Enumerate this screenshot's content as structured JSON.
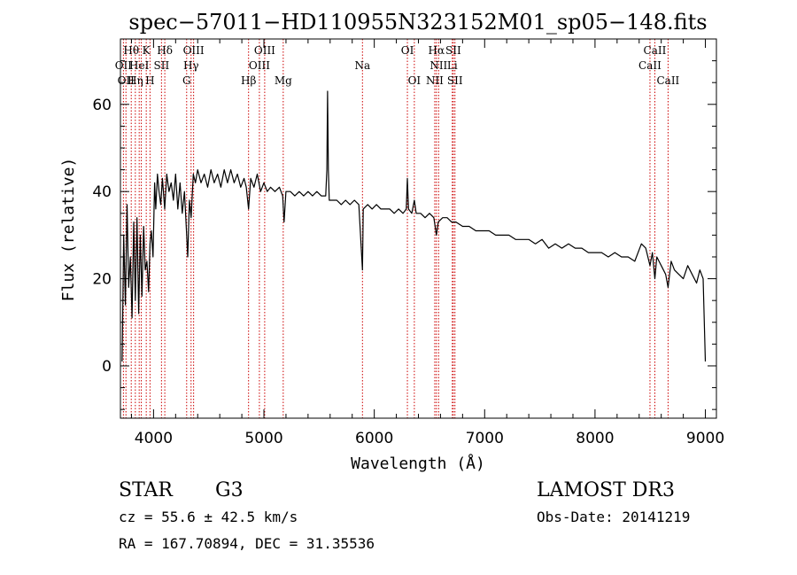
{
  "chart_data": {
    "type": "line",
    "title": "spec−57011−HD110955N323152M01_sp05−148.fits",
    "xlabel": "Wavelength (Å)",
    "ylabel": "Flux (relative)",
    "xlim": [
      3700,
      9100
    ],
    "ylim": [
      -12,
      75
    ],
    "x_ticks": [
      4000,
      5000,
      6000,
      7000,
      8000,
      9000
    ],
    "x_tick_labels": [
      "4000",
      "5000",
      "6000",
      "7000",
      "8000",
      "9000"
    ],
    "y_ticks": [
      0,
      20,
      40,
      60
    ],
    "y_tick_labels": [
      "0",
      "20",
      "40",
      "60"
    ],
    "line_color": "#000000",
    "marker_color": "#cc0000",
    "series": [
      {
        "name": "flux",
        "points": [
          [
            3715,
            1
          ],
          [
            3730,
            30
          ],
          [
            3745,
            14
          ],
          [
            3760,
            37
          ],
          [
            3775,
            18
          ],
          [
            3790,
            25
          ],
          [
            3805,
            11
          ],
          [
            3820,
            33
          ],
          [
            3835,
            15
          ],
          [
            3850,
            34
          ],
          [
            3865,
            12
          ],
          [
            3880,
            30
          ],
          [
            3895,
            16
          ],
          [
            3910,
            32
          ],
          [
            3925,
            22
          ],
          [
            3940,
            24
          ],
          [
            3955,
            17
          ],
          [
            3968,
            28
          ],
          [
            3980,
            31
          ],
          [
            3995,
            25
          ],
          [
            4010,
            42
          ],
          [
            4020,
            36
          ],
          [
            4035,
            44
          ],
          [
            4050,
            40
          ],
          [
            4065,
            37
          ],
          [
            4080,
            43
          ],
          [
            4101,
            36
          ],
          [
            4120,
            44
          ],
          [
            4140,
            40
          ],
          [
            4160,
            42
          ],
          [
            4180,
            38
          ],
          [
            4200,
            44
          ],
          [
            4220,
            36
          ],
          [
            4240,
            42
          ],
          [
            4260,
            35
          ],
          [
            4280,
            40
          ],
          [
            4300,
            30
          ],
          [
            4310,
            25
          ],
          [
            4325,
            38
          ],
          [
            4340,
            34
          ],
          [
            4360,
            44
          ],
          [
            4380,
            42
          ],
          [
            4400,
            45
          ],
          [
            4430,
            42
          ],
          [
            4460,
            44
          ],
          [
            4490,
            41
          ],
          [
            4520,
            45
          ],
          [
            4550,
            42
          ],
          [
            4580,
            44
          ],
          [
            4610,
            41
          ],
          [
            4640,
            45
          ],
          [
            4670,
            42
          ],
          [
            4700,
            45
          ],
          [
            4730,
            42
          ],
          [
            4760,
            44
          ],
          [
            4790,
            41
          ],
          [
            4820,
            43
          ],
          [
            4840,
            41
          ],
          [
            4861,
            36
          ],
          [
            4880,
            43
          ],
          [
            4910,
            41
          ],
          [
            4940,
            44
          ],
          [
            4970,
            40
          ],
          [
            5000,
            42
          ],
          [
            5030,
            40
          ],
          [
            5060,
            41
          ],
          [
            5100,
            40
          ],
          [
            5140,
            41
          ],
          [
            5170,
            39
          ],
          [
            5183,
            33
          ],
          [
            5200,
            40
          ],
          [
            5240,
            40
          ],
          [
            5280,
            39
          ],
          [
            5320,
            40
          ],
          [
            5360,
            39
          ],
          [
            5400,
            40
          ],
          [
            5440,
            39
          ],
          [
            5480,
            40
          ],
          [
            5520,
            39
          ],
          [
            5560,
            39
          ],
          [
            5570,
            45
          ],
          [
            5577,
            63
          ],
          [
            5584,
            45
          ],
          [
            5592,
            38
          ],
          [
            5620,
            38
          ],
          [
            5660,
            38
          ],
          [
            5700,
            37
          ],
          [
            5740,
            38
          ],
          [
            5780,
            37
          ],
          [
            5820,
            38
          ],
          [
            5860,
            37
          ],
          [
            5893,
            22
          ],
          [
            5900,
            36
          ],
          [
            5940,
            37
          ],
          [
            5980,
            36
          ],
          [
            6020,
            37
          ],
          [
            6060,
            36
          ],
          [
            6100,
            36
          ],
          [
            6140,
            36
          ],
          [
            6180,
            35
          ],
          [
            6220,
            36
          ],
          [
            6260,
            35
          ],
          [
            6290,
            36
          ],
          [
            6300,
            43
          ],
          [
            6310,
            36
          ],
          [
            6340,
            35
          ],
          [
            6363,
            38
          ],
          [
            6380,
            35
          ],
          [
            6420,
            35
          ],
          [
            6460,
            34
          ],
          [
            6500,
            35
          ],
          [
            6540,
            34
          ],
          [
            6563,
            30
          ],
          [
            6580,
            33
          ],
          [
            6620,
            34
          ],
          [
            6660,
            34
          ],
          [
            6700,
            33
          ],
          [
            6740,
            33
          ],
          [
            6800,
            32
          ],
          [
            6860,
            32
          ],
          [
            6920,
            31
          ],
          [
            6980,
            31
          ],
          [
            7040,
            31
          ],
          [
            7100,
            30
          ],
          [
            7160,
            30
          ],
          [
            7220,
            30
          ],
          [
            7280,
            29
          ],
          [
            7340,
            29
          ],
          [
            7400,
            29
          ],
          [
            7460,
            28
          ],
          [
            7520,
            29
          ],
          [
            7580,
            27
          ],
          [
            7640,
            28
          ],
          [
            7700,
            27
          ],
          [
            7760,
            28
          ],
          [
            7820,
            27
          ],
          [
            7880,
            27
          ],
          [
            7940,
            26
          ],
          [
            8000,
            26
          ],
          [
            8060,
            26
          ],
          [
            8120,
            25
          ],
          [
            8180,
            26
          ],
          [
            8240,
            25
          ],
          [
            8300,
            25
          ],
          [
            8360,
            24
          ],
          [
            8420,
            28
          ],
          [
            8460,
            27
          ],
          [
            8498,
            23
          ],
          [
            8520,
            26
          ],
          [
            8542,
            20
          ],
          [
            8560,
            25
          ],
          [
            8600,
            23
          ],
          [
            8640,
            21
          ],
          [
            8662,
            18
          ],
          [
            8690,
            24
          ],
          [
            8720,
            22
          ],
          [
            8760,
            21
          ],
          [
            8800,
            20
          ],
          [
            8840,
            23
          ],
          [
            8880,
            21
          ],
          [
            8920,
            19
          ],
          [
            8950,
            22
          ],
          [
            8980,
            20
          ],
          [
            9000,
            1
          ]
        ]
      }
    ],
    "line_markers": [
      {
        "wave": 3727,
        "labels": [
          "OII"
        ]
      },
      {
        "wave": 3750,
        "labels": [
          "OII"
        ]
      },
      {
        "wave": 3798,
        "labels": [
          "Hθ"
        ]
      },
      {
        "wave": 3835,
        "labels": [
          "Hη"
        ]
      },
      {
        "wave": 3870,
        "labels": [
          "HeI"
        ]
      },
      {
        "wave": 3889,
        "labels": [
          "HeI"
        ]
      },
      {
        "wave": 3934,
        "labels": [
          "K"
        ]
      },
      {
        "wave": 3968,
        "labels": [
          "H"
        ]
      },
      {
        "wave": 4072,
        "labels": [
          "SII"
        ]
      },
      {
        "wave": 4102,
        "labels": [
          "Hδ"
        ]
      },
      {
        "wave": 4300,
        "labels": [
          "G"
        ]
      },
      {
        "wave": 4340,
        "labels": [
          "Hγ"
        ]
      },
      {
        "wave": 4363,
        "labels": [
          "OIII"
        ]
      },
      {
        "wave": 4861,
        "labels": [
          "Hβ"
        ]
      },
      {
        "wave": 4959,
        "labels": [
          "OIII"
        ]
      },
      {
        "wave": 5007,
        "labels": [
          "OIII"
        ]
      },
      {
        "wave": 5175,
        "labels": [
          "Mg"
        ]
      },
      {
        "wave": 5893,
        "labels": [
          "Na"
        ]
      },
      {
        "wave": 6300,
        "labels": [
          "OI"
        ]
      },
      {
        "wave": 6363,
        "labels": [
          "OI"
        ]
      },
      {
        "wave": 6548,
        "labels": [
          "NII"
        ]
      },
      {
        "wave": 6563,
        "labels": [
          "Hα"
        ]
      },
      {
        "wave": 6583,
        "labels": [
          "NII"
        ]
      },
      {
        "wave": 6707,
        "labels": [
          "Li"
        ]
      },
      {
        "wave": 6716,
        "labels": [
          "SII"
        ]
      },
      {
        "wave": 6731,
        "labels": [
          "SII"
        ]
      },
      {
        "wave": 8498,
        "labels": [
          "CaII"
        ]
      },
      {
        "wave": 8542,
        "labels": [
          "CaII"
        ]
      },
      {
        "wave": 8662,
        "labels": [
          "CaII"
        ]
      }
    ],
    "marker_labels": [
      {
        "text": "Hθ",
        "wave": 3798,
        "row": 0
      },
      {
        "text": "K",
        "wave": 3934,
        "row": 0
      },
      {
        "text": "Hδ",
        "wave": 4102,
        "row": 0
      },
      {
        "text": "OIII",
        "wave": 4363,
        "row": 0
      },
      {
        "text": "OIII",
        "wave": 5007,
        "row": 0
      },
      {
        "text": "OI",
        "wave": 6300,
        "row": 0
      },
      {
        "text": "Hα",
        "wave": 6563,
        "row": 0
      },
      {
        "text": "SII",
        "wave": 6716,
        "row": 0
      },
      {
        "text": "CaII",
        "wave": 8542,
        "row": 0
      },
      {
        "text": "OII",
        "wave": 3727,
        "row": 1
      },
      {
        "text": "HeI",
        "wave": 3870,
        "row": 1
      },
      {
        "text": "SII",
        "wave": 4072,
        "row": 1
      },
      {
        "text": "Hγ",
        "wave": 4340,
        "row": 1
      },
      {
        "text": "OIII",
        "wave": 4959,
        "row": 1
      },
      {
        "text": "Na",
        "wave": 5893,
        "row": 1
      },
      {
        "text": "NII",
        "wave": 6583,
        "row": 1
      },
      {
        "text": "Li",
        "wave": 6707,
        "row": 1
      },
      {
        "text": "CaII",
        "wave": 8498,
        "row": 1
      },
      {
        "text": "OII",
        "wave": 3750,
        "row": 2
      },
      {
        "text": "Hη",
        "wave": 3835,
        "row": 2
      },
      {
        "text": "H",
        "wave": 3968,
        "row": 2
      },
      {
        "text": "G",
        "wave": 4300,
        "row": 2
      },
      {
        "text": "Hβ",
        "wave": 4861,
        "row": 2
      },
      {
        "text": "Mg",
        "wave": 5175,
        "row": 2
      },
      {
        "text": "OI",
        "wave": 6363,
        "row": 2
      },
      {
        "text": "NII",
        "wave": 6548,
        "row": 2
      },
      {
        "text": "SII",
        "wave": 6731,
        "row": 2
      },
      {
        "text": "CaII",
        "wave": 8662,
        "row": 2
      }
    ]
  },
  "info": {
    "object_type": "STAR",
    "subclass": "G3",
    "survey": "LAMOST DR3",
    "cz": "cz = 55.6 ± 42.5 km/s",
    "obs_date": "Obs-Date: 20141219",
    "coords": "RA = 167.70894, DEC =  31.35536"
  }
}
